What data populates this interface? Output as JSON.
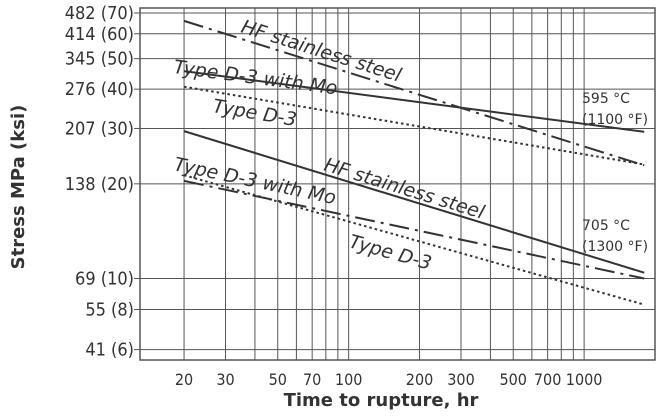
{
  "chart_data": {
    "type": "line",
    "title": "",
    "xlabel": "Time to rupture, hr",
    "ylabel": "Stress MPa (ksi)",
    "x_scale": "log",
    "y_scale": "log",
    "xlim": [
      13,
      2000
    ],
    "ylim": [
      38,
      500
    ],
    "grid": true,
    "x_ticks": [
      {
        "value": 20,
        "label": "20"
      },
      {
        "value": 30,
        "label": "30"
      },
      {
        "value": 50,
        "label": "50"
      },
      {
        "value": 70,
        "label": "70"
      },
      {
        "value": 100,
        "label": "100"
      },
      {
        "value": 200,
        "label": "200"
      },
      {
        "value": 300,
        "label": "300"
      },
      {
        "value": 500,
        "label": "500"
      },
      {
        "value": 700,
        "label": "700"
      },
      {
        "value": 1000,
        "label": "1000"
      }
    ],
    "y_ticks": [
      {
        "value": 482,
        "label": "482 (70)"
      },
      {
        "value": 414,
        "label": "414 (60)"
      },
      {
        "value": 345,
        "label": "345 (50)"
      },
      {
        "value": 276,
        "label": "276 (40)"
      },
      {
        "value": 207,
        "label": "207 (30)"
      },
      {
        "value": 138,
        "label": "138 (20)"
      },
      {
        "value": 69,
        "label": "69 (10)"
      },
      {
        "value": 55,
        "label": "55 (8)"
      },
      {
        "value": 41,
        "label": "41 (6)"
      }
    ],
    "series": [
      {
        "label": "HF stainless steel",
        "group": "595 °C",
        "dash": "dashdot",
        "x": [
          20,
          1800
        ],
        "y": [
          455,
          158
        ]
      },
      {
        "label": "Type D-3 with Mo",
        "group": "595 °C",
        "dash": "solid",
        "x": [
          20,
          1800
        ],
        "y": [
          315,
          202
        ]
      },
      {
        "label": "Type D-3",
        "group": "595 °C",
        "dash": "dotted",
        "x": [
          20,
          1800
        ],
        "y": [
          281,
          159
        ]
      },
      {
        "label": "HF stainless steel",
        "group": "705 °C",
        "dash": "solid",
        "x": [
          20,
          1800
        ],
        "y": [
          203,
          72
        ]
      },
      {
        "label": "Type D-3 with Mo",
        "group": "705 °C",
        "dash": "dashdot",
        "x": [
          20,
          1800
        ],
        "y": [
          141,
          69
        ]
      },
      {
        "label": "Type D-3",
        "group": "705 °C",
        "dash": "dotted",
        "x": [
          20,
          1800
        ],
        "y": [
          147,
          57
        ]
      }
    ],
    "annotations": [
      {
        "line1": "595 °C",
        "line2": "(1100 °F)"
      },
      {
        "line1": "705 °C",
        "line2": "(1300 °F)"
      }
    ],
    "colors": {
      "line": "#333333",
      "grid": "#555555",
      "text": "#333333"
    }
  }
}
